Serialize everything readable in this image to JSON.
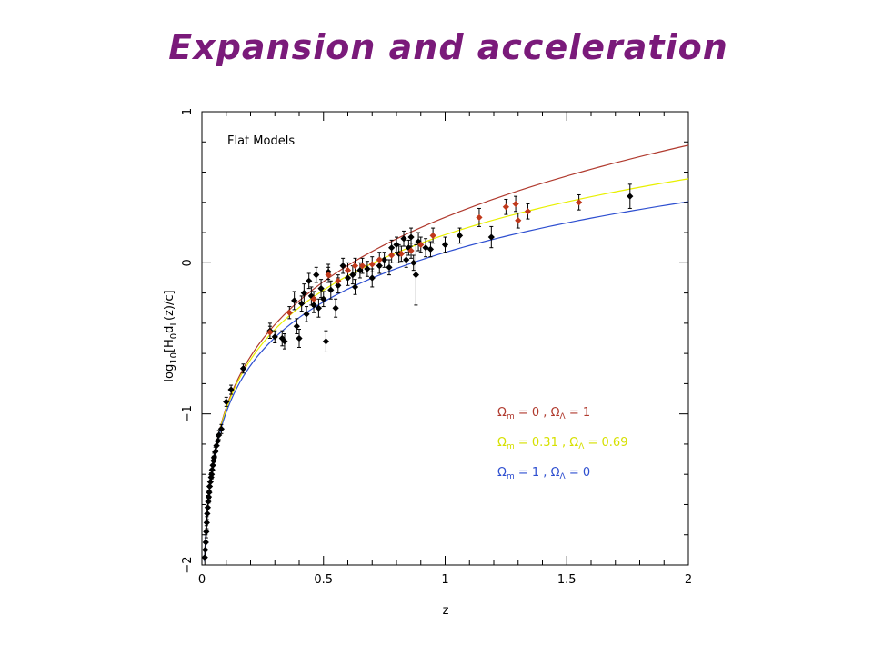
{
  "slide": {
    "title": "Expansion and acceleration"
  },
  "chart_data": {
    "type": "scatter",
    "annotation": "Flat Models",
    "xlabel": "z",
    "ylabel_parts": {
      "base": "log",
      "sub10": "10",
      "b1": "[H",
      "sub0": "0",
      "d": "d",
      "subL": "L",
      "tail": "(z)/c]"
    },
    "xlim": [
      0,
      2
    ],
    "ylim": [
      -2,
      1
    ],
    "xticks": [
      0,
      0.5,
      1,
      1.5,
      2
    ],
    "xtick_labels": [
      "0",
      "0.5",
      "1",
      "1.5",
      "2"
    ],
    "yticks": [
      -2,
      -1,
      0,
      1
    ],
    "ytick_labels": [
      "−2",
      "−1",
      "0",
      "1"
    ],
    "legend_position": "lower-right",
    "colors": {
      "red": "#b03a2e",
      "yellow": "#e8f000",
      "blue": "#2e4fd0",
      "black": "#000000",
      "red_point": "#c0391b"
    },
    "series": [
      {
        "name": "Ωm = 0 , ΩΛ = 1",
        "legend": {
          "om": "0",
          "ol": "1"
        },
        "kind": "curve",
        "color": "#b03a2e",
        "om": 0,
        "ol": 1
      },
      {
        "name": "Ωm = 0.31 , ΩΛ = 0.69",
        "legend": {
          "om": "0.31",
          "ol": "0.69"
        },
        "kind": "curve",
        "color": "#e8f000",
        "om": 0.31,
        "ol": 0.69
      },
      {
        "name": "Ωm = 1 , ΩΛ = 0",
        "legend": {
          "om": "1",
          "ol": "0"
        },
        "kind": "curve",
        "color": "#2e4fd0",
        "om": 1,
        "ol": 0
      }
    ],
    "points_black": [
      [
        0.012,
        -1.95,
        0.05
      ],
      [
        0.014,
        -1.9,
        0.05
      ],
      [
        0.016,
        -1.85,
        0.05
      ],
      [
        0.018,
        -1.78,
        0.04
      ],
      [
        0.02,
        -1.72,
        0.04
      ],
      [
        0.022,
        -1.66,
        0.04
      ],
      [
        0.024,
        -1.62,
        0.04
      ],
      [
        0.026,
        -1.58,
        0.04
      ],
      [
        0.028,
        -1.55,
        0.04
      ],
      [
        0.03,
        -1.52,
        0.04
      ],
      [
        0.032,
        -1.48,
        0.03
      ],
      [
        0.035,
        -1.45,
        0.03
      ],
      [
        0.038,
        -1.42,
        0.03
      ],
      [
        0.04,
        -1.4,
        0.03
      ],
      [
        0.042,
        -1.37,
        0.03
      ],
      [
        0.045,
        -1.34,
        0.03
      ],
      [
        0.048,
        -1.31,
        0.03
      ],
      [
        0.05,
        -1.29,
        0.03
      ],
      [
        0.055,
        -1.25,
        0.03
      ],
      [
        0.06,
        -1.21,
        0.03
      ],
      [
        0.065,
        -1.18,
        0.03
      ],
      [
        0.07,
        -1.14,
        0.03
      ],
      [
        0.08,
        -1.1,
        0.03
      ],
      [
        0.1,
        -0.92,
        0.03
      ],
      [
        0.12,
        -0.84,
        0.03
      ],
      [
        0.17,
        -0.7,
        0.03
      ],
      [
        0.28,
        -0.45,
        0.05
      ],
      [
        0.3,
        -0.49,
        0.04
      ],
      [
        0.33,
        -0.5,
        0.05
      ],
      [
        0.34,
        -0.52,
        0.05
      ],
      [
        0.38,
        -0.25,
        0.06
      ],
      [
        0.39,
        -0.42,
        0.05
      ],
      [
        0.4,
        -0.5,
        0.06
      ],
      [
        0.41,
        -0.27,
        0.05
      ],
      [
        0.42,
        -0.2,
        0.06
      ],
      [
        0.43,
        -0.34,
        0.05
      ],
      [
        0.44,
        -0.12,
        0.05
      ],
      [
        0.45,
        -0.22,
        0.06
      ],
      [
        0.46,
        -0.28,
        0.05
      ],
      [
        0.47,
        -0.08,
        0.05
      ],
      [
        0.48,
        -0.3,
        0.06
      ],
      [
        0.49,
        -0.17,
        0.06
      ],
      [
        0.5,
        -0.24,
        0.05
      ],
      [
        0.51,
        -0.52,
        0.07
      ],
      [
        0.52,
        -0.06,
        0.05
      ],
      [
        0.53,
        -0.18,
        0.06
      ],
      [
        0.55,
        -0.3,
        0.06
      ],
      [
        0.56,
        -0.15,
        0.05
      ],
      [
        0.58,
        -0.02,
        0.05
      ],
      [
        0.6,
        -0.1,
        0.05
      ],
      [
        0.62,
        -0.08,
        0.06
      ],
      [
        0.63,
        -0.16,
        0.05
      ],
      [
        0.65,
        -0.05,
        0.05
      ],
      [
        0.68,
        -0.04,
        0.05
      ],
      [
        0.7,
        -0.1,
        0.06
      ],
      [
        0.73,
        -0.02,
        0.05
      ],
      [
        0.75,
        0.02,
        0.05
      ],
      [
        0.77,
        -0.03,
        0.05
      ],
      [
        0.78,
        0.1,
        0.05
      ],
      [
        0.8,
        0.12,
        0.05
      ],
      [
        0.81,
        0.06,
        0.06
      ],
      [
        0.83,
        0.16,
        0.05
      ],
      [
        0.84,
        0.02,
        0.05
      ],
      [
        0.85,
        0.1,
        0.05
      ],
      [
        0.86,
        0.17,
        0.06
      ],
      [
        0.87,
        0.0,
        0.05
      ],
      [
        0.88,
        -0.08,
        0.2
      ],
      [
        0.89,
        0.14,
        0.06
      ],
      [
        0.92,
        0.1,
        0.06
      ],
      [
        0.94,
        0.09,
        0.05
      ],
      [
        1.0,
        0.12,
        0.05
      ],
      [
        1.06,
        0.18,
        0.05
      ],
      [
        1.19,
        0.17,
        0.07
      ],
      [
        1.76,
        0.44,
        0.08
      ]
    ],
    "points_red": [
      [
        0.28,
        -0.46,
        0.04
      ],
      [
        0.36,
        -0.33,
        0.04
      ],
      [
        0.46,
        -0.24,
        0.05
      ],
      [
        0.52,
        -0.08,
        0.05
      ],
      [
        0.56,
        -0.12,
        0.04
      ],
      [
        0.6,
        -0.05,
        0.05
      ],
      [
        0.63,
        -0.02,
        0.05
      ],
      [
        0.66,
        -0.02,
        0.05
      ],
      [
        0.7,
        -0.01,
        0.05
      ],
      [
        0.73,
        0.02,
        0.05
      ],
      [
        0.78,
        0.05,
        0.05
      ],
      [
        0.82,
        0.06,
        0.05
      ],
      [
        0.86,
        0.08,
        0.05
      ],
      [
        0.9,
        0.12,
        0.05
      ],
      [
        0.95,
        0.18,
        0.05
      ],
      [
        1.14,
        0.3,
        0.06
      ],
      [
        1.25,
        0.37,
        0.05
      ],
      [
        1.29,
        0.39,
        0.05
      ],
      [
        1.3,
        0.28,
        0.05
      ],
      [
        1.34,
        0.34,
        0.05
      ],
      [
        1.55,
        0.4,
        0.05
      ]
    ]
  }
}
